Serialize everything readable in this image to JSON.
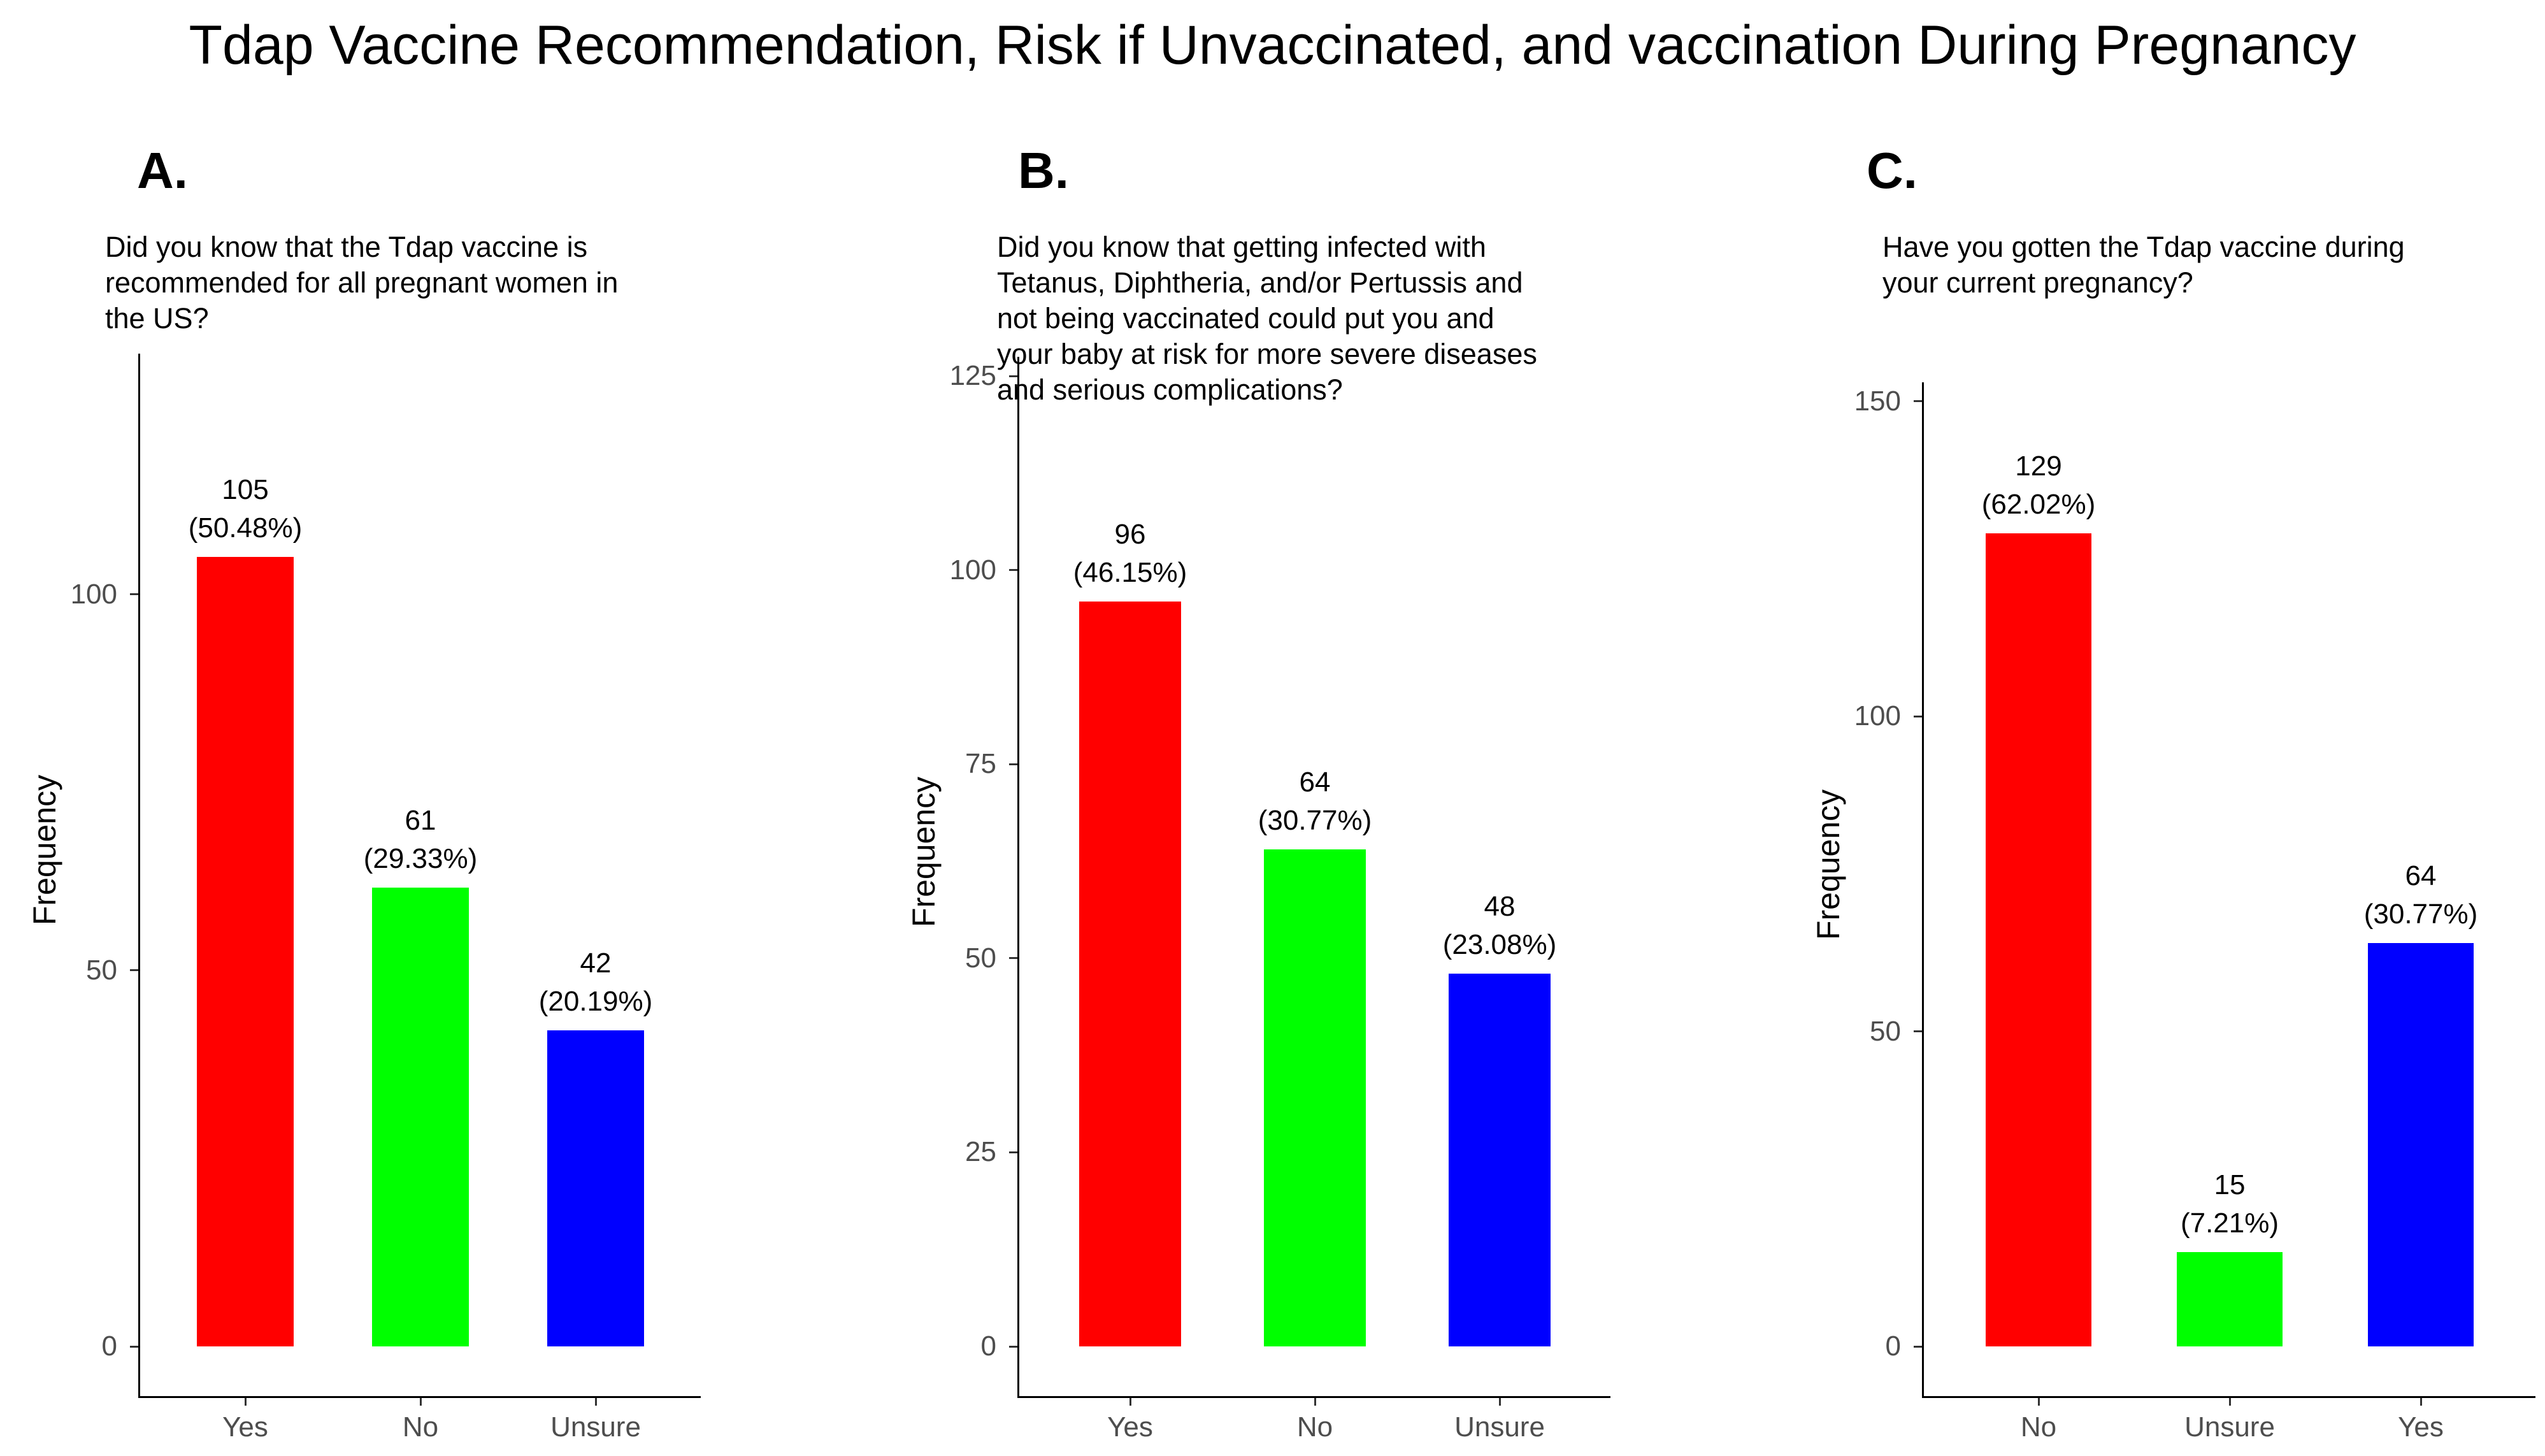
{
  "page_title": "Tdap Vaccine Recommendation, Risk if Unvaccinated, and vaccination During Pregnancy",
  "colors": {
    "bar_red": "#FF0000",
    "bar_green": "#00FF00",
    "bar_blue": "#0000FF",
    "axis_line": "#000000",
    "tick_text": "#4d4d4d"
  },
  "chart_data": [
    {
      "type": "bar",
      "panel_label": "A.",
      "title": "Did you know that the Tdap vaccine is\nrecommended for all pregnant women in\nthe US?",
      "ylabel": "Frequency",
      "categories": [
        "Yes",
        "No",
        "Unsure"
      ],
      "values": [
        105,
        61,
        42
      ],
      "percent_labels": [
        "(50.48%)",
        "(29.33%)",
        "(20.19%)"
      ],
      "bar_colors": [
        "#FF0000",
        "#00FF00",
        "#0000FF"
      ],
      "yticks": [
        0,
        50,
        100
      ],
      "ylim": [
        0,
        132
      ],
      "grid": "off",
      "legend": "none"
    },
    {
      "type": "bar",
      "panel_label": "B.",
      "title": "Did you know that getting infected with\nTetanus, Diphtheria, and/or Pertussis and\nnot being vaccinated could put you and\nyour baby at risk for more severe diseases\nand serious complications?",
      "ylabel": "Frequency",
      "categories": [
        "Yes",
        "No",
        "Unsure"
      ],
      "values": [
        96,
        64,
        48
      ],
      "percent_labels": [
        "(46.15%)",
        "(30.77%)",
        "(23.08%)"
      ],
      "bar_colors": [
        "#FF0000",
        "#00FF00",
        "#0000FF"
      ],
      "yticks": [
        0,
        25,
        50,
        75,
        100,
        125
      ],
      "ylim": [
        0,
        127.5
      ],
      "grid": "off",
      "legend": "none"
    },
    {
      "type": "bar",
      "panel_label": "C.",
      "title": "Have you gotten the Tdap vaccine during\nyour current pregnancy?",
      "ylabel": "Frequency",
      "categories": [
        "No",
        "Unsure",
        "Yes"
      ],
      "values": [
        129,
        15,
        64
      ],
      "percent_labels": [
        "(62.02%)",
        "(7.21%)",
        "(30.77%)"
      ],
      "bar_colors": [
        "#FF0000",
        "#00FF00",
        "#0000FF"
      ],
      "yticks": [
        0,
        50,
        100,
        150
      ],
      "ylim": [
        0,
        153
      ],
      "grid": "off",
      "legend": "none"
    }
  ]
}
